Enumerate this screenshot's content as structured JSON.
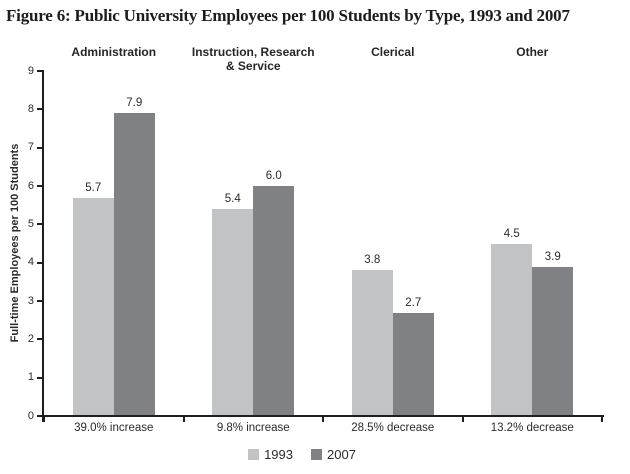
{
  "figure_title": "Figure 6: Public University Employees per 100 Students by Type, 1993 and 2007",
  "chart_data": {
    "type": "bar",
    "title": "Figure 6: Public University Employees per 100 Students by Type, 1993 and 2007",
    "xlabel": "",
    "ylabel": "Full-time Employees per 100 Students",
    "ylim": [
      0,
      9
    ],
    "yticks": [
      0,
      1,
      2,
      3,
      4,
      5,
      6,
      7,
      8,
      9
    ],
    "grid": false,
    "legend_position": "bottom-center",
    "categories": [
      "Administration",
      "Instruction, Research\n& Service",
      "Clerical",
      "Other"
    ],
    "category_annotations": [
      "39.0% increase",
      "9.8% increase",
      "28.5% decrease",
      "13.2% decrease"
    ],
    "series": [
      {
        "name": "1993",
        "color": "#c2c3c5",
        "values": [
          5.7,
          5.4,
          3.8,
          4.5
        ],
        "labels": [
          "5.7",
          "5.4",
          "3.8",
          "4.5"
        ]
      },
      {
        "name": "2007",
        "color": "#7f8184",
        "values": [
          7.9,
          6.0,
          2.7,
          3.9
        ],
        "labels": [
          "7.9",
          "6.0",
          "2.7",
          "3.9"
        ]
      }
    ],
    "axis_color": "#221e1f"
  }
}
